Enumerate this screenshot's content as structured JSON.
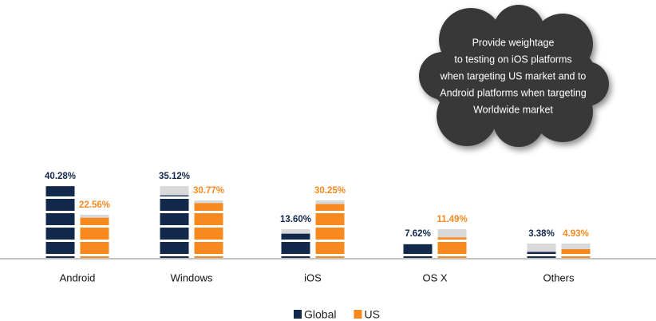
{
  "chart_data": {
    "type": "bar",
    "categories": [
      "Android",
      "Windows",
      "iOS",
      "OS X",
      "Others"
    ],
    "series": [
      {
        "name": "Global",
        "color": "#13294b",
        "values": [
          40.28,
          35.12,
          13.6,
          7.62,
          3.38
        ],
        "value_labels": [
          "40.28%",
          "35.12%",
          "13.60%",
          "7.62%",
          "3.38%"
        ]
      },
      {
        "name": "US",
        "color": "#f7891f",
        "values": [
          22.56,
          30.77,
          30.25,
          11.49,
          4.93
        ],
        "value_labels": [
          "22.56%",
          "30.77%",
          "30.25%",
          "11.49%",
          "4.93%"
        ]
      }
    ],
    "annotation": [
      "Provide weightage",
      "to testing on iOS platforms",
      "when targeting US market and to",
      "Android platforms when targeting",
      "Worldwide market"
    ],
    "legend": "bottom"
  }
}
